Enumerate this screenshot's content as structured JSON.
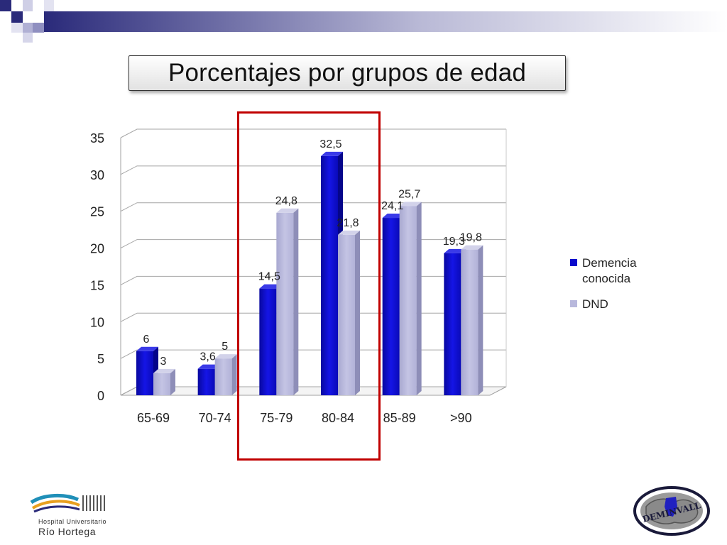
{
  "slide": {
    "title": "Porcentajes por grupos de edad",
    "colors": {
      "highlight": "#c00000",
      "accent": "#1a1a8c"
    }
  },
  "logos": {
    "left": {
      "line1": "Hospital Universitario",
      "line2": "Río Hortega",
      "icon": "hospital-logo-icon"
    },
    "right": {
      "text": "DEMINVALL",
      "icon": "brain-logo-icon"
    }
  },
  "chart_data": {
    "type": "bar",
    "categories": [
      "65-69",
      "70-74",
      "75-79",
      "80-84",
      "85-89",
      ">90"
    ],
    "series": [
      {
        "name": "Demencia conocida",
        "values": [
          6,
          3.6,
          14.5,
          32.5,
          24.1,
          19.3
        ],
        "labels": [
          "6",
          "3,6",
          "14,5",
          "32,5",
          "24,1",
          "19,3"
        ],
        "color": "#0a0acc"
      },
      {
        "name": "DND",
        "values": [
          3,
          5,
          24.8,
          21.8,
          25.7,
          19.8
        ],
        "labels": [
          "3",
          "5",
          "24,8",
          "21,8",
          "25,7",
          "19,8"
        ],
        "color": "#b8b8dc"
      }
    ],
    "yticks": [
      "0",
      "5",
      "10",
      "15",
      "20",
      "25",
      "30",
      "35"
    ],
    "ylim": [
      0,
      35
    ],
    "grid": true,
    "legend": "right",
    "highlighted_categories": [
      "75-79",
      "80-84"
    ]
  }
}
